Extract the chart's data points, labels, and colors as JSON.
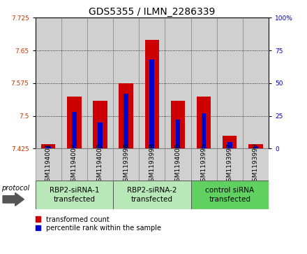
{
  "title": "GDS5355 / ILMN_2286339",
  "samples": [
    "GSM1194001",
    "GSM1194002",
    "GSM1194003",
    "GSM1193996",
    "GSM1193998",
    "GSM1194000",
    "GSM1193995",
    "GSM1193997",
    "GSM1193999"
  ],
  "red_values": [
    7.435,
    7.545,
    7.535,
    7.575,
    7.675,
    7.535,
    7.545,
    7.455,
    7.435
  ],
  "blue_values": [
    2,
    28,
    20,
    42,
    68,
    22,
    27,
    5,
    2
  ],
  "ylim_left": [
    7.425,
    7.725
  ],
  "ylim_right": [
    0,
    100
  ],
  "yticks_left": [
    7.425,
    7.5,
    7.575,
    7.65,
    7.725
  ],
  "yticks_right": [
    0,
    25,
    50,
    75,
    100
  ],
  "groups": [
    {
      "label": "RBP2-siRNA-1\ntransfected",
      "start": 0,
      "end": 3,
      "color": "#b8e8b8"
    },
    {
      "label": "RBP2-siRNA-2\ntransfected",
      "start": 3,
      "end": 6,
      "color": "#b8e8b8"
    },
    {
      "label": "control siRNA\ntransfected",
      "start": 6,
      "end": 9,
      "color": "#60d060"
    }
  ],
  "bar_width": 0.55,
  "blue_bar_width": 0.18,
  "red_color": "#cc0000",
  "blue_color": "#0000cc",
  "bg_color": "#d0d0d0",
  "title_fontsize": 10,
  "tick_fontsize": 6.5,
  "label_fontsize": 7.5,
  "legend_fontsize": 7,
  "bar_base": 7.425
}
